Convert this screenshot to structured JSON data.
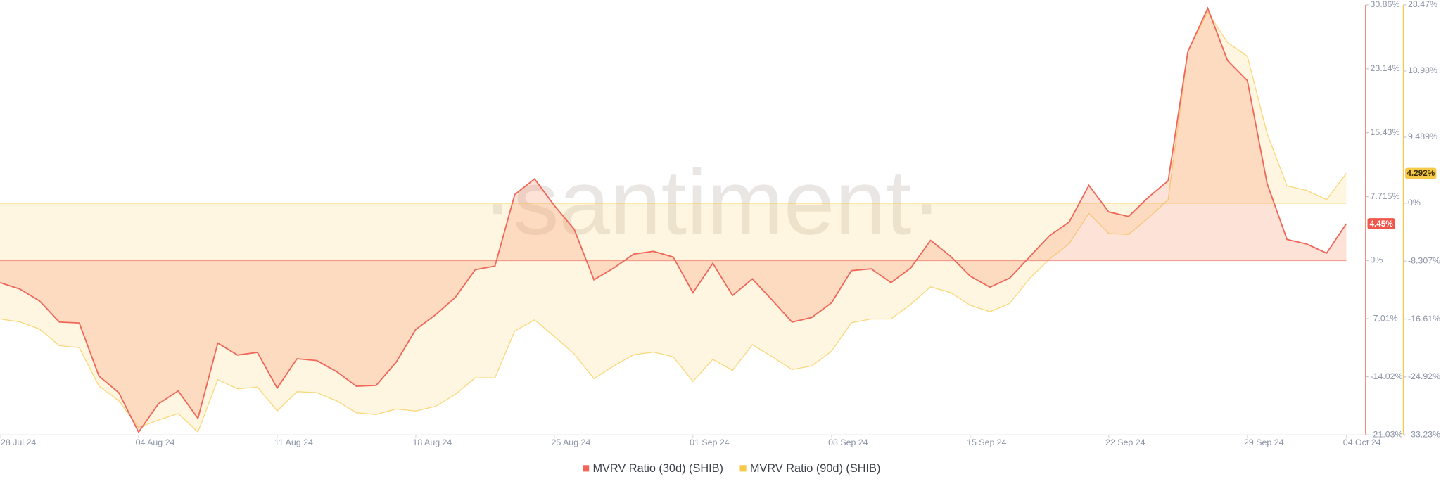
{
  "chart_data": {
    "type": "area",
    "watermark": "·santiment·",
    "x": [
      0,
      1,
      2,
      3,
      4,
      5,
      6,
      7,
      8,
      9,
      10,
      11,
      12,
      13,
      14,
      15,
      16,
      17,
      18,
      19,
      20,
      21,
      22,
      23,
      24,
      25,
      26,
      27,
      28,
      29,
      30,
      31,
      32,
      33,
      34,
      35,
      36,
      37,
      38,
      39,
      40,
      41,
      42,
      43,
      44,
      45,
      46,
      47,
      48,
      49,
      50,
      51,
      52,
      53,
      54,
      55,
      56,
      57,
      58,
      59,
      60,
      61,
      62,
      63,
      64,
      65,
      66,
      67,
      68
    ],
    "xlim": [
      0,
      68
    ],
    "xticks": [
      {
        "value": 0,
        "label": "28 Jul 24"
      },
      {
        "value": 7,
        "label": "04 Aug 24"
      },
      {
        "value": 14,
        "label": "11 Aug 24"
      },
      {
        "value": 21,
        "label": "18 Aug 24"
      },
      {
        "value": 28,
        "label": "25 Aug 24"
      },
      {
        "value": 35,
        "label": "01 Sep 24"
      },
      {
        "value": 42,
        "label": "08 Sep 24"
      },
      {
        "value": 49,
        "label": "15 Sep 24"
      },
      {
        "value": 56,
        "label": "22 Sep 24"
      },
      {
        "value": 63,
        "label": "29 Sep 24"
      },
      {
        "value": 68,
        "label": "04 Oct 24"
      }
    ],
    "ylim": [
      -21.03,
      30.86
    ],
    "yticks": [
      {
        "value": 30.86,
        "label": "30.86%"
      },
      {
        "value": 23.14,
        "label": "23.14%"
      },
      {
        "value": 15.43,
        "label": "15.43%"
      },
      {
        "value": 7.715,
        "label": "7.715%"
      },
      {
        "value": 0,
        "label": "0%"
      },
      {
        "value": -7.01,
        "label": "-7.01%"
      },
      {
        "value": -14.02,
        "label": "-14.02%"
      },
      {
        "value": -21.03,
        "label": "-21.03%"
      }
    ],
    "y2lim": [
      -33.23,
      28.47
    ],
    "y2ticks": [
      {
        "value": 28.47,
        "label": "28.47%"
      },
      {
        "value": 18.98,
        "label": "18.98%"
      },
      {
        "value": 9.489,
        "label": "9.489%"
      },
      {
        "value": 0,
        "label": "0%"
      },
      {
        "value": -8.307,
        "label": "-8.307%"
      },
      {
        "value": -16.61,
        "label": "-16.61%"
      },
      {
        "value": -24.92,
        "label": "-24.92%"
      },
      {
        "value": -33.23,
        "label": "-33.23%"
      }
    ],
    "legend": "bottom",
    "series": [
      {
        "name": "MVRV Ratio (30d) (SHIB)",
        "color": "#f0675a",
        "axis": "y",
        "values": [
          -2.66,
          -3.43,
          -4.87,
          -7.42,
          -7.53,
          -13.95,
          -15.95,
          -20.71,
          -17.28,
          -15.73,
          -19.05,
          -9.97,
          -11.41,
          -11.08,
          -15.39,
          -11.85,
          -12.07,
          -13.4,
          -15.17,
          -15.06,
          -12.29,
          -8.31,
          -6.54,
          -4.43,
          -1.11,
          -0.66,
          7.97,
          9.85,
          6.64,
          3.77,
          -2.33,
          -0.89,
          0.78,
          1.11,
          0.44,
          -3.88,
          -0.33,
          -4.21,
          -2.21,
          -4.76,
          -7.42,
          -6.87,
          -5.09,
          -1.22,
          -1.0,
          -2.66,
          -0.89,
          2.44,
          0.55,
          -1.88,
          -3.21,
          -2.1,
          0.44,
          2.99,
          4.65,
          9.08,
          5.87,
          5.32,
          7.64,
          9.63,
          25.25,
          30.45,
          24.14,
          21.71,
          9.3,
          2.55,
          2.0,
          0.89,
          4.45
        ],
        "value_labels": [
          null,
          null,
          null,
          null,
          null,
          null,
          null,
          null,
          null,
          null,
          null,
          null,
          null,
          null,
          null,
          null,
          null,
          null,
          null,
          null,
          null,
          null,
          null,
          null,
          null,
          null,
          null,
          null,
          null,
          null,
          null,
          null,
          null,
          null,
          null,
          null,
          null,
          null,
          null,
          null,
          null,
          null,
          null,
          null,
          null,
          null,
          null,
          null,
          null,
          null,
          null,
          null,
          null,
          null,
          null,
          null,
          null,
          null,
          null,
          null,
          null,
          null,
          null,
          null,
          null,
          null,
          null,
          null,
          "4.45%"
        ]
      },
      {
        "name": "MVRV Ratio (90d) (SHIB)",
        "color": "#f7c948",
        "axis": "y2",
        "values": [
          -16.61,
          -17.01,
          -18.06,
          -20.44,
          -20.7,
          -26.24,
          -28.35,
          -32.17,
          -31.11,
          -30.19,
          -32.83,
          -25.31,
          -26.63,
          -26.37,
          -29.8,
          -27.03,
          -27.16,
          -28.35,
          -30.06,
          -30.32,
          -29.53,
          -29.8,
          -29.14,
          -27.42,
          -25.05,
          -25.05,
          -18.33,
          -16.74,
          -19.12,
          -21.62,
          -25.18,
          -23.34,
          -21.75,
          -21.36,
          -22.02,
          -25.58,
          -22.41,
          -23.99,
          -20.3,
          -22.02,
          -23.87,
          -23.34,
          -21.23,
          -17.14,
          -16.61,
          -16.61,
          -14.5,
          -12.0,
          -12.79,
          -14.63,
          -15.56,
          -14.37,
          -10.81,
          -8.04,
          -5.8,
          -1.45,
          -4.35,
          -4.48,
          -2.11,
          0.53,
          21.89,
          27.42,
          23.07,
          21.1,
          10.02,
          2.5,
          1.85,
          0.53,
          4.292
        ],
        "value_labels": [
          null,
          null,
          null,
          null,
          null,
          null,
          null,
          null,
          null,
          null,
          null,
          null,
          null,
          null,
          null,
          null,
          null,
          null,
          null,
          null,
          null,
          null,
          null,
          null,
          null,
          null,
          null,
          null,
          null,
          null,
          null,
          null,
          null,
          null,
          null,
          null,
          null,
          null,
          null,
          null,
          null,
          null,
          null,
          null,
          null,
          null,
          null,
          null,
          null,
          null,
          null,
          null,
          null,
          null,
          null,
          null,
          null,
          null,
          null,
          null,
          null,
          null,
          null,
          null,
          null,
          null,
          null,
          null,
          "4.292%"
        ]
      }
    ]
  }
}
